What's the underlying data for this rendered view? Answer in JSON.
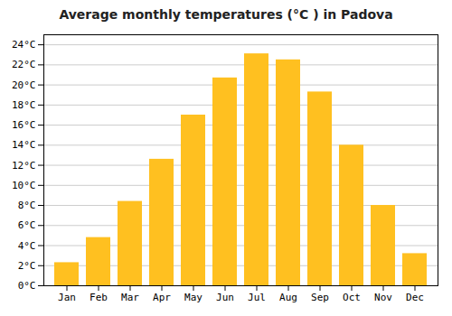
{
  "chart_data": {
    "type": "bar",
    "title": "Average monthly temperatures (°C ) in Padova",
    "categories": [
      "Jan",
      "Feb",
      "Mar",
      "Apr",
      "May",
      "Jun",
      "Jul",
      "Aug",
      "Sep",
      "Oct",
      "Nov",
      "Dec"
    ],
    "values": [
      2.3,
      4.8,
      8.4,
      12.6,
      17.0,
      20.7,
      23.1,
      22.5,
      19.3,
      14.0,
      8.0,
      3.2
    ],
    "color": "#FFC020",
    "ylim": [
      0,
      25
    ],
    "yticks": [
      {
        "value": 0,
        "label": "0°C"
      },
      {
        "value": 2,
        "label": "2°C"
      },
      {
        "value": 4,
        "label": "4°C"
      },
      {
        "value": 6,
        "label": "6°C"
      },
      {
        "value": 8,
        "label": "8°C"
      },
      {
        "value": 10,
        "label": "10°C"
      },
      {
        "value": 12,
        "label": "12°C"
      },
      {
        "value": 14,
        "label": "14°C"
      },
      {
        "value": 16,
        "label": "16°C"
      },
      {
        "value": 18,
        "label": "18°C"
      },
      {
        "value": 20,
        "label": "20°C"
      },
      {
        "value": 22,
        "label": "22°C"
      },
      {
        "value": 24,
        "label": "24°C"
      }
    ],
    "grid": true
  }
}
